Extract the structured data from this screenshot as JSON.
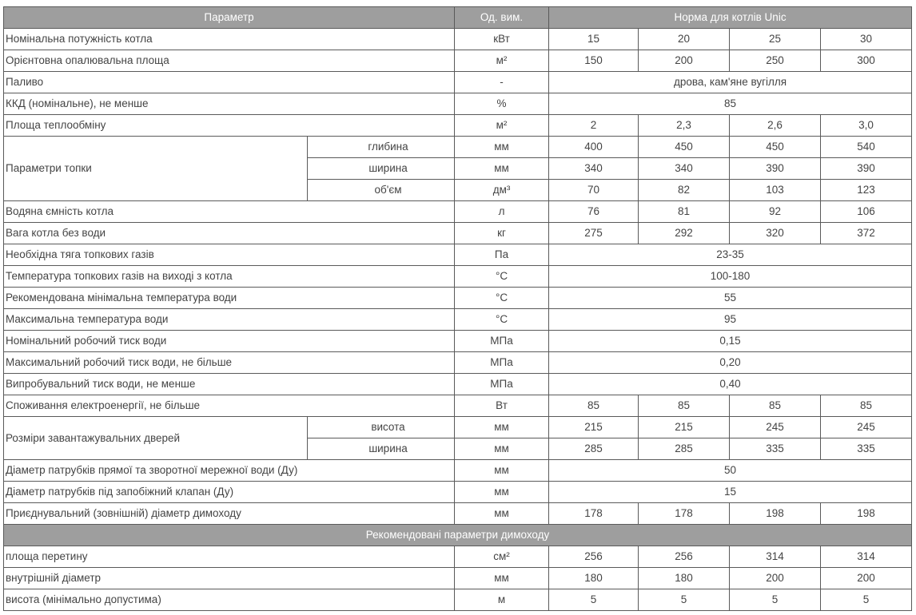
{
  "header": {
    "parameter": "Параметр",
    "unit": "Од. вим.",
    "norm": "Норма для котлів Unic"
  },
  "colors": {
    "header_bg": "#9e9e9e",
    "header_text": "#ffffff",
    "border": "#5a5a5a",
    "text": "#444444"
  },
  "rows": [
    {
      "param": "Номінальна потужність котла",
      "unit": "кВт",
      "values": [
        "15",
        "20",
        "25",
        "30"
      ]
    },
    {
      "param": "Орієнтовна опалювальна площа",
      "unit": "м²",
      "values": [
        "150",
        "200",
        "250",
        "300"
      ]
    },
    {
      "param": "Паливо",
      "unit": "-",
      "value": "дрова, кам'яне вугілля"
    },
    {
      "param": "ККД (номінальне), не менше",
      "unit": "%",
      "value": "85"
    },
    {
      "param": "Площа теплообміну",
      "unit": "м²",
      "values": [
        "2",
        "2,3",
        "2,6",
        "3,0"
      ]
    },
    {
      "param": "Параметри топки",
      "sub": [
        {
          "label": "глибина",
          "unit": "мм",
          "values": [
            "400",
            "450",
            "450",
            "540"
          ]
        },
        {
          "label": "ширина",
          "unit": "мм",
          "values": [
            "340",
            "340",
            "390",
            "390"
          ]
        },
        {
          "label": "об'єм",
          "unit": "дм³",
          "values": [
            "70",
            "82",
            "103",
            "123"
          ]
        }
      ]
    },
    {
      "param": "Водяна ємність котла",
      "unit": "л",
      "values": [
        "76",
        "81",
        "92",
        "106"
      ]
    },
    {
      "param": "Вага котла без води",
      "unit": "кг",
      "values": [
        "275",
        "292",
        "320",
        "372"
      ]
    },
    {
      "param": "Необхідна тяга топкових газів",
      "unit": "Па",
      "value": "23-35"
    },
    {
      "param": "Температура топкових газів на виході з котла",
      "unit": "°С",
      "value": "100-180"
    },
    {
      "param": "Рекомендована мінімальна температура води",
      "unit": "°С",
      "value": "55"
    },
    {
      "param": "Максимальна температура води",
      "unit": "°С",
      "value": "95"
    },
    {
      "param": "Номінальний робочий тиск води",
      "unit": "МПа",
      "value": "0,15"
    },
    {
      "param": "Максимальний робочий тиск води, не більше",
      "unit": "МПа",
      "value": "0,20"
    },
    {
      "param": "Випробувальний тиск води, не менше",
      "unit": "МПа",
      "value": "0,40"
    },
    {
      "param": "Споживання електроенергії, не більше",
      "unit": "Вт",
      "values": [
        "85",
        "85",
        "85",
        "85"
      ]
    },
    {
      "param": "Розміри завантажувальних дверей",
      "sub": [
        {
          "label": "висота",
          "unit": "мм",
          "values": [
            "215",
            "215",
            "245",
            "245"
          ]
        },
        {
          "label": "ширина",
          "unit": "мм",
          "values": [
            "285",
            "285",
            "335",
            "335"
          ]
        }
      ]
    },
    {
      "param": "Діаметр патрубків прямої та зворотної мережної води (Ду)",
      "unit": "мм",
      "value": "50"
    },
    {
      "param": "Діаметр патрубків під запобіжний клапан (Ду)",
      "unit": "мм",
      "value": "15"
    },
    {
      "param": "Приєднувальний (зовнішній) діаметр димоходу",
      "unit": "мм",
      "values": [
        "178",
        "178",
        "198",
        "198"
      ]
    },
    {
      "section": "Рекомендовані параметри димоходу"
    },
    {
      "param": "площа перетину",
      "unit": "см²",
      "values": [
        "256",
        "256",
        "314",
        "314"
      ]
    },
    {
      "param": "внутрішній діаметр",
      "unit": "мм",
      "values": [
        "180",
        "180",
        "200",
        "200"
      ]
    },
    {
      "param": "висота (мінімально допустима)",
      "unit": "м",
      "values": [
        "5",
        "5",
        "5",
        "5"
      ]
    }
  ]
}
